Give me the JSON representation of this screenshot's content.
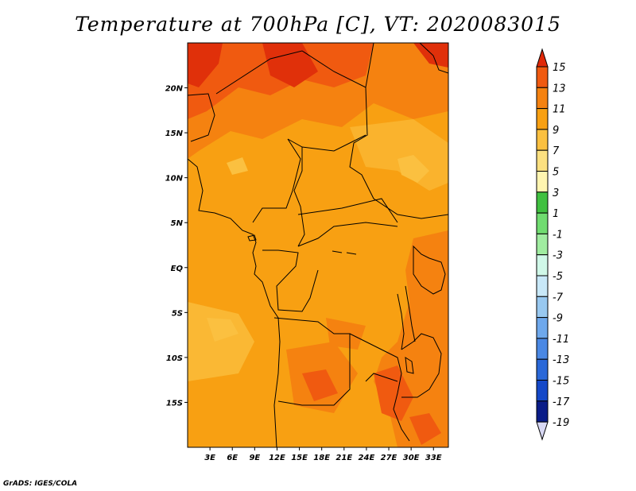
{
  "title": "Temperature at 700hPa [C], VT: 2020083015",
  "credit": "GrADS: IGES/COLA",
  "map": {
    "lon_ticks": [
      "3E",
      "6E",
      "9E",
      "12E",
      "15E",
      "18E",
      "21E",
      "24E",
      "27E",
      "30E",
      "33E"
    ],
    "lat_ticks": [
      "20N",
      "15N",
      "10N",
      "5N",
      "EQ",
      "5S",
      "10S",
      "15S"
    ],
    "lon_range": [
      0,
      35
    ],
    "lat_range": [
      -20,
      25
    ]
  },
  "colorbar": {
    "labels": [
      "15",
      "13",
      "11",
      "9",
      "7",
      "5",
      "3",
      "1",
      "-1",
      "-3",
      "-5",
      "-7",
      "-9",
      "-11",
      "-13",
      "-15",
      "-17",
      "-19"
    ],
    "colors": [
      "#e0300a",
      "#f05a10",
      "#f58210",
      "#f8a012",
      "#fbc040",
      "#fce080",
      "#fff5b0",
      "#40c040",
      "#70dc70",
      "#a0eca0",
      "#d0f8e8",
      "#c8e8f8",
      "#98c8f0",
      "#6ea8ec",
      "#4a88e4",
      "#2a68d8",
      "#1448c8",
      "#0a1c88",
      "#101060"
    ],
    "top_arrow_color": "#e02808",
    "bottom_arrow_color": "#d8d8f4"
  }
}
